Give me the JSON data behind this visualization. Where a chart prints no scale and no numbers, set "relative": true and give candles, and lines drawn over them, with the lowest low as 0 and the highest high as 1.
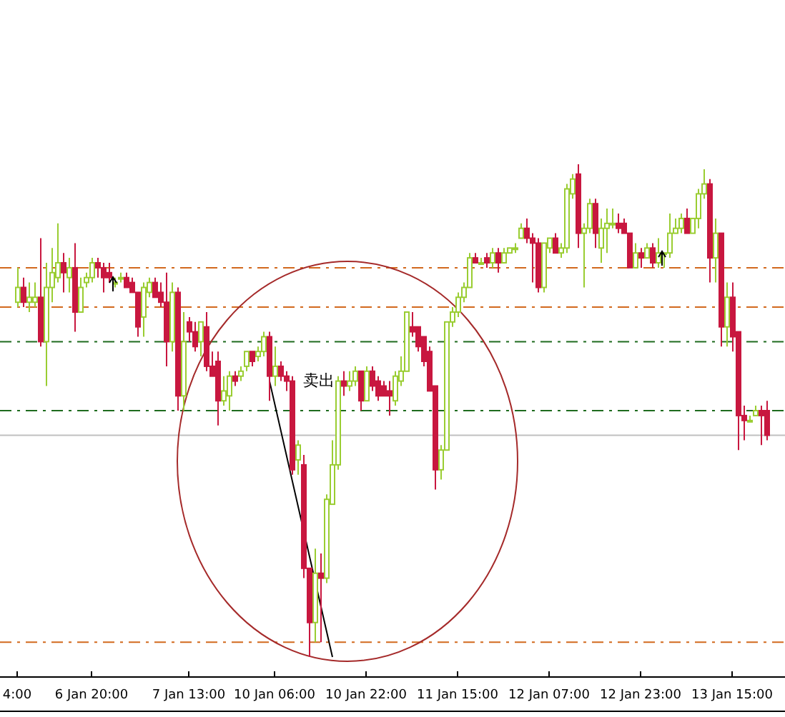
{
  "chart_data": {
    "type": "candlestick",
    "relative": true,
    "categories": [
      "4:00",
      null,
      null,
      null,
      null,
      null,
      null,
      null,
      null,
      null,
      null,
      null,
      null,
      "6 Jan 20:00",
      null,
      null,
      null,
      null,
      null,
      null,
      null,
      null,
      null,
      null,
      null,
      null,
      null,
      null,
      null,
      null,
      "7 Jan 13:00",
      null,
      null,
      null,
      null,
      null,
      null,
      null,
      null,
      null,
      null,
      null,
      null,
      null,
      null,
      "10 Jan 06:00",
      null,
      null,
      null,
      null,
      null,
      null,
      null,
      null,
      null,
      null,
      null,
      null,
      null,
      null,
      null,
      "10 Jan 22:00",
      null,
      null,
      null,
      null,
      null,
      null,
      null,
      null,
      null,
      null,
      null,
      null,
      null,
      null,
      null,
      "11 Jan 15:00",
      null,
      null,
      null,
      null,
      null,
      null,
      null,
      null,
      null,
      null,
      null,
      null,
      null,
      null,
      null,
      "12 Jan 07:00",
      null,
      null,
      null,
      null,
      null,
      null,
      null,
      null,
      null,
      null,
      null,
      null,
      null,
      null,
      null,
      "12 Jan 23:00",
      null,
      null,
      null,
      null,
      null,
      null,
      null,
      null,
      null,
      null,
      null,
      null,
      null,
      null,
      null,
      "13 Jan 15:00",
      null,
      null,
      null,
      null,
      null,
      null
    ],
    "colors": [
      "#9acd32",
      "#c8173f",
      "#9acd32",
      "#9acd32",
      "#c8173f",
      "#9acd32",
      "#9acd32",
      "#9acd32",
      "#c8173f",
      "#9acd32",
      "#c8173f",
      "#9acd32",
      "#9acd32",
      "#9acd32",
      "#c8173f",
      "#c8173f",
      "#c8173f",
      "#9acd32",
      "#9acd32",
      "#c8173f",
      "#c8173f",
      "#c8173f",
      "#9acd32",
      "#9acd32",
      "#c8173f",
      "#c8173f",
      "#c8173f",
      "#9acd32",
      "#c8173f",
      "#9acd32",
      "#c8173f",
      "#c8173f",
      "#9acd32",
      "#c8173f",
      "#c8173f",
      "#c8173f",
      "#9acd32",
      "#9acd32",
      "#c8173f",
      "#9acd32",
      "#9acd32",
      "#c8173f",
      "#9acd32",
      "#9acd32",
      "#c8173f",
      "#9acd32",
      "#c8173f",
      "#c8173f",
      "#c8173f",
      "#9acd32",
      "#c8173f",
      "#c8173f",
      "#9acd32",
      "#c8173f",
      "#9acd32",
      "#9acd32",
      "#9acd32",
      "#c8173f",
      "#9acd32",
      "#9acd32",
      "#c8173f",
      "#9acd32",
      "#c8173f",
      "#c8173f",
      "#c8173f",
      "#c8173f",
      "#9acd32",
      "#9acd32",
      "#9acd32",
      "#c8173f",
      "#c8173f",
      "#c8173f",
      "#c8173f",
      "#c8173f",
      "#9acd32",
      "#9acd32",
      "#9acd32",
      "#9acd32",
      "#9acd32",
      "#9acd32",
      "#c8173f",
      "#9acd32",
      "#c8173f",
      "#9acd32",
      "#c8173f",
      "#9acd32",
      "#9acd32",
      "#9acd32",
      "#9acd32",
      "#c8173f",
      "#c8173f",
      "#c8173f",
      "#9acd32",
      "#9acd32",
      "#c8173f",
      "#9acd32",
      "#9acd32",
      "#9acd32",
      "#c8173f",
      "#9acd32",
      "#9acd32",
      "#c8173f",
      "#9acd32",
      "#9acd32",
      "#9acd32",
      "#c8173f",
      "#c8173f",
      "#c8173f",
      "#9acd32",
      "#c8173f",
      "#9acd32",
      "#c8173f",
      "#9acd32",
      "#9acd32",
      "#9acd32",
      "#9acd32",
      "#9acd32",
      "#c8173f",
      "#9acd32",
      "#9acd32",
      "#9acd32",
      "#c8173f",
      "#9acd32",
      "#c8173f",
      "#9acd32",
      "#c8173f",
      "#c8173f",
      "#c8173f",
      "#9acd32",
      "#9acd32",
      "#c8173f",
      "#c8173f"
    ],
    "ohlc": [
      [
        0.72,
        0.79,
        0.71,
        0.75
      ],
      [
        0.75,
        0.77,
        0.71,
        0.72
      ],
      [
        0.72,
        0.76,
        0.7,
        0.73
      ],
      [
        0.72,
        0.76,
        0.71,
        0.73
      ],
      [
        0.73,
        0.85,
        0.63,
        0.64
      ],
      [
        0.64,
        0.8,
        0.55,
        0.75
      ],
      [
        0.75,
        0.83,
        0.72,
        0.78
      ],
      [
        0.77,
        0.88,
        0.76,
        0.8
      ],
      [
        0.8,
        0.82,
        0.74,
        0.78
      ],
      [
        0.77,
        0.81,
        0.74,
        0.79
      ],
      [
        0.79,
        0.84,
        0.66,
        0.7
      ],
      [
        0.7,
        0.77,
        0.7,
        0.75
      ],
      [
        0.76,
        0.78,
        0.75,
        0.77
      ],
      [
        0.77,
        0.81,
        0.76,
        0.8
      ],
      [
        0.8,
        0.81,
        0.77,
        0.79
      ],
      [
        0.79,
        0.8,
        0.74,
        0.77
      ],
      [
        0.78,
        0.8,
        0.76,
        0.77
      ],
      [
        0.76,
        0.77,
        0.75,
        0.76
      ],
      [
        0.77,
        0.78,
        0.76,
        0.77
      ],
      [
        0.77,
        0.78,
        0.75,
        0.75
      ],
      [
        0.76,
        0.77,
        0.74,
        0.74
      ],
      [
        0.74,
        0.74,
        0.65,
        0.67
      ],
      [
        0.69,
        0.76,
        0.65,
        0.75
      ],
      [
        0.74,
        0.77,
        0.73,
        0.76
      ],
      [
        0.76,
        0.77,
        0.73,
        0.73
      ],
      [
        0.74,
        0.76,
        0.71,
        0.72
      ],
      [
        0.72,
        0.78,
        0.59,
        0.64
      ],
      [
        0.64,
        0.76,
        0.62,
        0.74
      ],
      [
        0.74,
        0.75,
        0.5,
        0.53
      ],
      [
        0.53,
        0.7,
        0.5,
        0.64
      ],
      [
        0.68,
        0.69,
        0.64,
        0.66
      ],
      [
        0.66,
        0.68,
        0.62,
        0.63
      ],
      [
        0.64,
        0.68,
        0.61,
        0.68
      ],
      [
        0.67,
        0.7,
        0.58,
        0.59
      ],
      [
        0.59,
        0.62,
        0.57,
        0.57
      ],
      [
        0.6,
        0.62,
        0.47,
        0.52
      ],
      [
        0.52,
        0.57,
        0.51,
        0.54
      ],
      [
        0.53,
        0.58,
        0.5,
        0.57
      ],
      [
        0.57,
        0.58,
        0.55,
        0.56
      ],
      [
        0.57,
        0.59,
        0.56,
        0.58
      ],
      [
        0.59,
        0.62,
        0.58,
        0.62
      ],
      [
        0.62,
        0.62,
        0.59,
        0.6
      ],
      [
        0.61,
        0.63,
        0.6,
        0.62
      ],
      [
        0.62,
        0.66,
        0.61,
        0.65
      ],
      [
        0.65,
        0.66,
        0.52,
        0.57
      ],
      [
        0.57,
        0.63,
        0.55,
        0.59
      ],
      [
        0.59,
        0.6,
        0.56,
        0.57
      ],
      [
        0.57,
        0.58,
        0.54,
        0.56
      ],
      [
        0.56,
        0.57,
        0.37,
        0.38
      ],
      [
        0.4,
        0.44,
        0.37,
        0.43
      ],
      [
        0.39,
        0.41,
        0.16,
        0.18
      ],
      [
        0.18,
        0.18,
        0.0,
        0.07
      ],
      [
        0.07,
        0.22,
        0.03,
        0.17
      ],
      [
        0.17,
        0.21,
        0.03,
        0.16
      ],
      [
        0.16,
        0.33,
        0.15,
        0.32
      ],
      [
        0.31,
        0.44,
        0.31,
        0.39
      ],
      [
        0.39,
        0.57,
        0.38,
        0.56
      ],
      [
        0.56,
        0.58,
        0.53,
        0.55
      ],
      [
        0.55,
        0.58,
        0.54,
        0.56
      ],
      [
        0.56,
        0.59,
        0.55,
        0.58
      ],
      [
        0.58,
        0.58,
        0.5,
        0.52
      ],
      [
        0.52,
        0.59,
        0.52,
        0.58
      ],
      [
        0.58,
        0.59,
        0.54,
        0.55
      ],
      [
        0.56,
        0.57,
        0.52,
        0.53
      ],
      [
        0.55,
        0.56,
        0.53,
        0.53
      ],
      [
        0.54,
        0.56,
        0.49,
        0.53
      ],
      [
        0.52,
        0.58,
        0.51,
        0.57
      ],
      [
        0.56,
        0.61,
        0.55,
        0.58
      ],
      [
        0.58,
        0.7,
        0.58,
        0.7
      ],
      [
        0.67,
        0.7,
        0.65,
        0.66
      ],
      [
        0.67,
        0.67,
        0.62,
        0.63
      ],
      [
        0.65,
        0.65,
        0.59,
        0.6
      ],
      [
        0.62,
        0.63,
        0.54,
        0.54
      ],
      [
        0.55,
        0.55,
        0.34,
        0.38
      ],
      [
        0.38,
        0.43,
        0.36,
        0.42
      ],
      [
        0.42,
        0.68,
        0.42,
        0.68
      ],
      [
        0.68,
        0.71,
        0.67,
        0.7
      ],
      [
        0.7,
        0.74,
        0.69,
        0.73
      ],
      [
        0.73,
        0.76,
        0.72,
        0.75
      ],
      [
        0.75,
        0.82,
        0.75,
        0.81
      ],
      [
        0.81,
        0.82,
        0.8,
        0.8
      ],
      [
        0.8,
        0.81,
        0.8,
        0.8
      ],
      [
        0.81,
        0.82,
        0.79,
        0.8
      ],
      [
        0.8,
        0.83,
        0.79,
        0.82
      ],
      [
        0.82,
        0.83,
        0.78,
        0.8
      ],
      [
        0.8,
        0.83,
        0.8,
        0.82
      ],
      [
        0.82,
        0.83,
        0.82,
        0.83
      ],
      [
        0.83,
        0.84,
        0.82,
        0.83
      ],
      [
        0.85,
        0.88,
        0.85,
        0.87
      ],
      [
        0.87,
        0.89,
        0.84,
        0.85
      ],
      [
        0.85,
        0.86,
        0.76,
        0.84
      ],
      [
        0.84,
        0.85,
        0.74,
        0.75
      ],
      [
        0.75,
        0.84,
        0.74,
        0.84
      ],
      [
        0.83,
        0.85,
        0.82,
        0.85
      ],
      [
        0.85,
        0.86,
        0.82,
        0.82
      ],
      [
        0.82,
        0.84,
        0.81,
        0.83
      ],
      [
        0.83,
        0.96,
        0.82,
        0.95
      ],
      [
        0.94,
        0.98,
        0.93,
        0.97
      ],
      [
        0.98,
        1.0,
        0.83,
        0.86
      ],
      [
        0.86,
        0.88,
        0.75,
        0.87
      ],
      [
        0.87,
        0.93,
        0.86,
        0.92
      ],
      [
        0.92,
        0.93,
        0.83,
        0.86
      ],
      [
        0.83,
        0.89,
        0.8,
        0.87
      ],
      [
        0.87,
        0.91,
        0.82,
        0.88
      ],
      [
        0.88,
        0.91,
        0.87,
        0.88
      ],
      [
        0.88,
        0.9,
        0.86,
        0.87
      ],
      [
        0.88,
        0.89,
        0.86,
        0.86
      ],
      [
        0.86,
        0.86,
        0.79,
        0.79
      ],
      [
        0.79,
        0.84,
        0.79,
        0.82
      ],
      [
        0.82,
        0.83,
        0.79,
        0.81
      ],
      [
        0.81,
        0.84,
        0.81,
        0.83
      ],
      [
        0.83,
        0.84,
        0.79,
        0.8
      ],
      [
        0.8,
        0.85,
        0.79,
        0.82
      ],
      [
        0.82,
        0.82,
        0.79,
        0.82
      ],
      [
        0.82,
        0.9,
        0.81,
        0.86
      ],
      [
        0.86,
        0.89,
        0.86,
        0.87
      ],
      [
        0.87,
        0.9,
        0.86,
        0.89
      ],
      [
        0.89,
        0.91,
        0.86,
        0.86
      ],
      [
        0.86,
        0.89,
        0.86,
        0.89
      ],
      [
        0.89,
        0.95,
        0.87,
        0.94
      ],
      [
        0.94,
        0.99,
        0.93,
        0.96
      ],
      [
        0.96,
        0.97,
        0.76,
        0.81
      ],
      [
        0.81,
        0.89,
        0.76,
        0.86
      ],
      [
        0.86,
        0.86,
        0.63,
        0.67
      ],
      [
        0.67,
        0.76,
        0.63,
        0.73
      ],
      [
        0.73,
        0.76,
        0.62,
        0.65
      ],
      [
        0.66,
        0.66,
        0.42,
        0.49
      ],
      [
        0.49,
        0.51,
        0.44,
        0.48
      ],
      [
        0.48,
        0.49,
        0.48,
        0.48
      ],
      [
        0.49,
        0.51,
        0.49,
        0.5
      ],
      [
        0.5,
        0.51,
        0.43,
        0.49
      ],
      [
        0.5,
        0.52,
        0.44,
        0.45
      ]
    ],
    "series": [
      {
        "type": "line",
        "color": "#000000",
        "values": [
          null,
          null,
          null,
          null,
          null,
          null,
          null,
          null,
          null,
          null,
          null,
          null,
          null,
          null,
          null,
          null,
          null,
          null,
          null,
          null,
          null,
          null,
          null,
          null,
          null,
          null,
          null,
          null,
          null,
          null,
          null,
          null,
          null,
          null,
          null,
          null,
          null,
          null,
          null,
          null,
          null,
          null,
          null,
          null,
          0.56,
          null,
          null,
          null,
          null,
          null,
          null,
          null,
          null,
          null,
          null,
          0.0,
          null,
          null,
          null,
          null,
          null,
          null,
          null,
          null,
          null,
          null,
          null,
          null,
          null,
          null,
          null,
          null,
          null,
          null,
          null,
          null,
          null,
          null,
          null,
          null,
          null,
          null,
          null,
          null,
          null,
          null,
          null,
          null,
          null,
          null,
          null,
          null,
          null,
          null,
          null,
          null,
          null,
          null,
          null,
          null,
          null,
          null,
          null,
          null,
          null,
          null,
          null,
          null,
          null,
          null,
          null,
          null,
          null,
          null,
          null,
          null,
          null,
          null,
          null,
          null,
          null,
          null,
          null,
          null,
          null,
          null,
          null,
          null,
          null,
          null,
          null,
          null
        ]
      }
    ],
    "ref_lines": [
      {
        "axis": "y",
        "value": 0.79,
        "color": "#d2691e",
        "line_style": "dashed"
      },
      {
        "axis": "y",
        "value": 0.71,
        "color": "#d2691e",
        "line_style": "dashed"
      },
      {
        "axis": "y",
        "value": 0.64,
        "color": "#1e6b1e",
        "line_style": "dashed"
      },
      {
        "axis": "y",
        "value": 0.5,
        "color": "#1e6b1e",
        "line_style": "dashed"
      },
      {
        "axis": "y",
        "value": 0.45,
        "color": "#c0c0c0",
        "line_style": "solid"
      },
      {
        "axis": "y",
        "value": 0.03,
        "color": "#d2691e",
        "line_style": "dashed"
      }
    ],
    "annotations": [
      "卖出"
    ]
  }
}
